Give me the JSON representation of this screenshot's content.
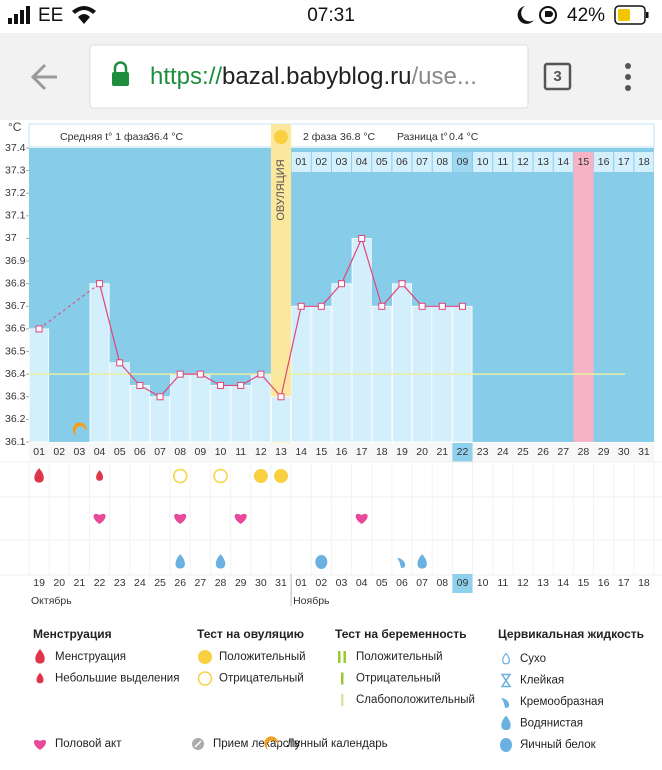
{
  "status_bar": {
    "carrier": "EE",
    "time": "07:31",
    "battery": "42%"
  },
  "browser": {
    "url_scheme": "https://",
    "url_host": "bazal.babyblog.ru",
    "url_rest": "/use...",
    "tabs": "3"
  },
  "chart_data": {
    "type": "line",
    "y_unit": "°C",
    "categories": [
      "01",
      "02",
      "03",
      "04",
      "05",
      "06",
      "07",
      "08",
      "09",
      "10",
      "11",
      "12",
      "13",
      "14",
      "15",
      "16",
      "17",
      "18",
      "19",
      "20",
      "21",
      "22",
      "23",
      "24",
      "25",
      "26",
      "27",
      "28",
      "29",
      "30",
      "31"
    ],
    "values": [
      36.6,
      null,
      null,
      36.8,
      36.45,
      36.35,
      36.3,
      36.4,
      36.4,
      36.35,
      36.35,
      36.4,
      36.3,
      36.7,
      36.7,
      36.8,
      37,
      36.7,
      36.8,
      36.7,
      36.7,
      36.7,
      null,
      null,
      null,
      null,
      null,
      null,
      null,
      null,
      null
    ],
    "ylim": [
      36.1,
      37.4
    ],
    "yticks": [
      36.1,
      36.2,
      36.3,
      36.4,
      36.5,
      36.6,
      36.7,
      36.8,
      36.9,
      37,
      37.1,
      37.2,
      37.3,
      37.4
    ],
    "coverline": 36.4,
    "color": "#e0457b",
    "bar_color": "#d2effb",
    "background": "#87cdea",
    "phase1": {
      "label": "Средняя t° 1 фаза",
      "value": "36.4 °C"
    },
    "phase2": {
      "label": "2 фаза",
      "value": "36.8 °C"
    },
    "difference": {
      "label": "Разница t°",
      "value": "0.4 °C"
    },
    "ovulation": {
      "day": "13",
      "label": "ОВУЛЯЦИЯ"
    },
    "expected_day": "28",
    "today": "22",
    "cycle_days": [
      null,
      null,
      null,
      null,
      null,
      null,
      null,
      null,
      null,
      null,
      null,
      null,
      null,
      "01",
      "02",
      "03",
      "04",
      "05",
      "06",
      "07",
      "08",
      "09",
      "10",
      "11",
      "12",
      "13",
      "14",
      "15",
      "16",
      "17",
      "18"
    ],
    "dates": [
      "19",
      "20",
      "21",
      "22",
      "23",
      "24",
      "25",
      "26",
      "27",
      "28",
      "29",
      "30",
      "31",
      "01",
      "02",
      "03",
      "04",
      "05",
      "06",
      "07",
      "08",
      "09",
      "10",
      "11",
      "12",
      "13",
      "14",
      "15",
      "16",
      "17",
      "18"
    ],
    "weekend_dates": [
      "21",
      "22",
      "28",
      "29",
      "04",
      "05",
      "11",
      "12",
      "18"
    ],
    "months": [
      {
        "name": "Октябрь",
        "from": "19"
      },
      {
        "name": "Ноябрь",
        "from": "01"
      }
    ]
  },
  "legend": {
    "groups": [
      {
        "title": "Менструация",
        "items": [
          {
            "label": "Менструация",
            "days": [
              "01"
            ]
          },
          {
            "label": "Небольшие выделения",
            "days": [
              "04"
            ]
          }
        ]
      },
      {
        "title": "Тест на овуляцию",
        "items": [
          {
            "label": "Положительный",
            "days": [
              "12",
              "13"
            ]
          },
          {
            "label": "Отрицательный",
            "days": [
              "08",
              "10"
            ]
          }
        ]
      },
      {
        "title": "Тест на беременность",
        "items": [
          {
            "label": "Положительный",
            "days": []
          },
          {
            "label": "Отрицательный",
            "days": []
          },
          {
            "label": "Слабоположительный",
            "days": []
          }
        ]
      },
      {
        "title": "Цервикальная жидкость",
        "items": [
          {
            "label": "Сухо",
            "days": []
          },
          {
            "label": "Клейкая",
            "days": []
          },
          {
            "label": "Кремообразная",
            "days": [
              "19"
            ]
          },
          {
            "label": "Водянистая",
            "days": [
              "08",
              "10",
              "20"
            ]
          },
          {
            "label": "Яичный белок",
            "days": [
              "15"
            ]
          }
        ]
      }
    ],
    "other": [
      {
        "label": "Половой акт",
        "days": [
          "04",
          "08",
          "11",
          "17"
        ]
      },
      {
        "label": "Прием лекарств",
        "days": []
      },
      {
        "label": "Лунный календарь",
        "days": [
          "03"
        ]
      }
    ]
  }
}
